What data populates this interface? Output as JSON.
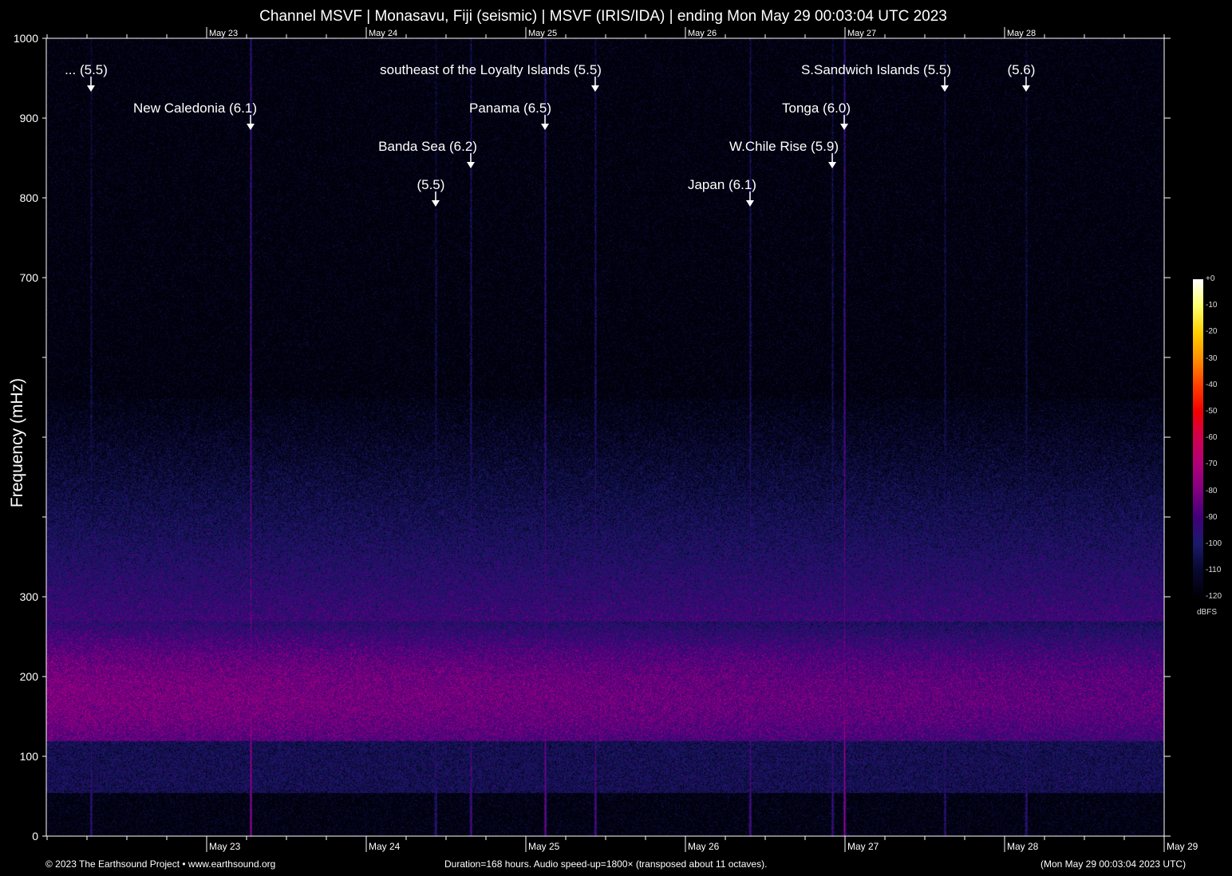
{
  "chart_data": {
    "type": "heatmap",
    "title": "Channel MSVF | Monasavu, Fiji (seismic) | MSVF (IRIS/IDA) | ending Mon May 29 00:03:04 UTC 2023",
    "ylabel": "Frequency (mHz)",
    "xlabel": "",
    "ylim": [
      0,
      1000
    ],
    "y_ticks": [
      0,
      100,
      200,
      300,
      400,
      500,
      600,
      700,
      800,
      900,
      1000
    ],
    "y_tick_labels": [
      "0",
      "100",
      "200",
      "300",
      "",
      "",
      "",
      "700",
      "800",
      "900",
      "1000"
    ],
    "x_range": [
      "May 22 00:03:04",
      "May 29 00:03:04"
    ],
    "x_tick_labels": [
      "May 23",
      "May 24",
      "May 25",
      "May 26",
      "May 27",
      "May 28",
      "May 29"
    ],
    "x_tick_labels_top": [
      "May 23",
      "May 24",
      "May 25",
      "May 26",
      "May 27",
      "May 28"
    ],
    "colorbar": {
      "unit": "dBFS",
      "range": [
        -120,
        0
      ],
      "ticks": [
        "+0",
        "-10",
        "-20",
        "-30",
        "-40",
        "-50",
        "-60",
        "-70",
        "-80",
        "-90",
        "-100",
        "-110",
        "-120"
      ],
      "colors": [
        "#ffffff",
        "#ffff70",
        "#ffd000",
        "#ff9000",
        "#ff4000",
        "#f00000",
        "#d00050",
        "#b0007a",
        "#800080",
        "#40007a",
        "#1a1a6a",
        "#080830",
        "#000008"
      ]
    },
    "background_energy": "microseism band peaking near 130-250 mHz (about -80 dBFS), fading to -120 dBFS above ~500 mHz",
    "events": [
      {
        "label": "... (5.5)",
        "time": "May 22 06:36"
      },
      {
        "label": "New Caledonia (6.1)",
        "time": "May 23 06:36"
      },
      {
        "label": "southeast of the Loyalty Islands (5.5)",
        "time": "May 25 10:26"
      },
      {
        "label": "Banda Sea (6.2)",
        "time": "May 24 15:43"
      },
      {
        "label": "(5.5)",
        "time": "May 24 10:26"
      },
      {
        "label": "Panama (6.5)",
        "time": "May 25 02:53"
      },
      {
        "label": "S.Sandwich Islands (5.5)",
        "time": "May 27 15:00"
      },
      {
        "label": "(5.6)",
        "time": "May 28 03:14"
      },
      {
        "label": "Tonga (6.0)",
        "time": "May 26 23:53"
      },
      {
        "label": "W.Chile Rise (5.9)",
        "time": "May 26 22:05"
      },
      {
        "label": "Japan (6.1)",
        "time": "May 26 09:43"
      }
    ]
  },
  "footer": {
    "copyright": "© 2023 The Earthsound Project • www.earthsound.org",
    "info": "Duration=168 hours. Audio speed-up=1800× (transposed about 11 octaves).",
    "end_time": "(Mon May 29 00:03:04 2023 UTC)"
  }
}
